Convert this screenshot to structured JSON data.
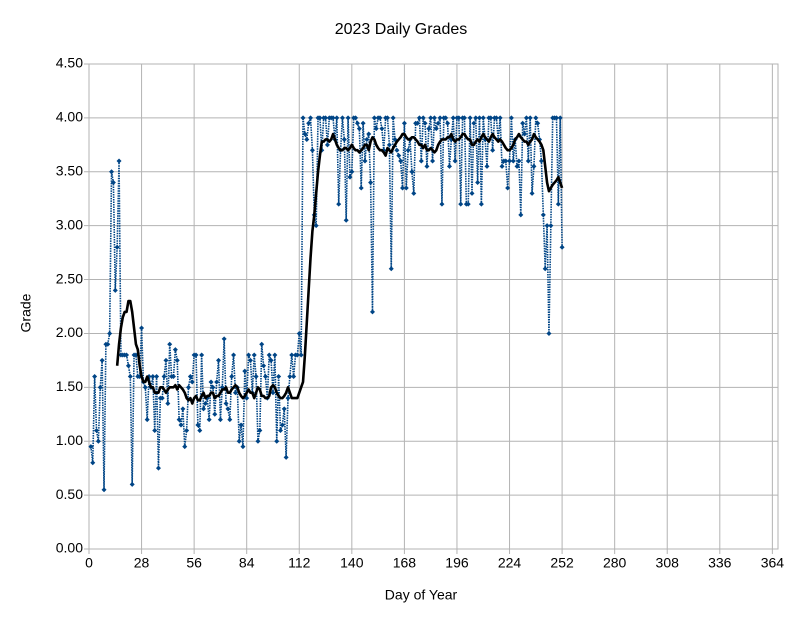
{
  "chart_data": {
    "type": "line",
    "title": "2023 Daily Grades",
    "xlabel": "Day of Year",
    "ylabel": "Grade",
    "x": [
      1,
      2,
      3,
      4,
      5,
      6,
      7,
      8,
      9,
      10,
      11,
      12,
      13,
      14,
      15,
      16,
      17,
      18,
      19,
      20,
      21,
      22,
      23,
      24,
      25,
      26,
      27,
      28,
      29,
      30,
      31,
      32,
      33,
      34,
      35,
      36,
      37,
      38,
      39,
      40,
      41,
      42,
      43,
      44,
      45,
      46,
      47,
      48,
      49,
      50,
      51,
      52,
      53,
      54,
      55,
      56,
      57,
      58,
      59,
      60,
      61,
      62,
      63,
      64,
      65,
      66,
      67,
      68,
      69,
      70,
      71,
      72,
      73,
      74,
      75,
      76,
      77,
      78,
      79,
      80,
      81,
      82,
      83,
      84,
      85,
      86,
      87,
      88,
      89,
      90,
      91,
      92,
      93,
      94,
      95,
      96,
      97,
      98,
      99,
      100,
      101,
      102,
      103,
      104,
      105,
      106,
      107,
      108,
      109,
      110,
      111,
      112,
      113,
      114,
      115,
      116,
      117,
      118,
      119,
      120,
      121,
      122,
      123,
      124,
      125,
      126,
      127,
      128,
      129,
      130,
      131,
      132,
      133,
      134,
      135,
      136,
      137,
      138,
      139,
      140,
      141,
      142,
      143,
      144,
      145,
      146,
      147,
      148,
      149,
      150,
      151,
      152,
      153,
      154,
      155,
      156,
      157,
      158,
      159,
      160,
      161,
      162,
      163,
      164,
      165,
      166,
      167,
      168,
      169,
      170,
      171,
      172,
      173,
      174,
      175,
      176,
      177,
      178,
      179,
      180,
      181,
      182,
      183,
      184,
      185,
      186,
      187,
      188,
      189,
      190,
      191,
      192,
      193,
      194,
      195,
      196,
      197,
      198,
      199,
      200,
      201,
      202,
      203,
      204,
      205,
      206,
      207,
      208,
      209,
      210,
      211,
      212,
      213,
      214,
      215,
      216,
      217,
      218,
      219,
      220,
      221,
      222,
      223,
      224,
      225,
      226,
      227,
      228,
      229,
      230,
      231,
      232,
      233,
      234,
      235,
      236,
      237,
      238,
      239,
      240,
      241,
      242,
      243,
      244,
      245,
      246,
      247,
      248,
      249,
      250,
      251,
      252
    ],
    "series": [
      {
        "color": "#004586",
        "style": "dotted",
        "markers": true,
        "values": [
          0.95,
          0.8,
          1.6,
          1.1,
          1.0,
          1.5,
          1.75,
          0.55,
          1.9,
          1.9,
          2.0,
          3.5,
          3.4,
          2.4,
          2.8,
          3.6,
          1.8,
          1.8,
          1.8,
          1.8,
          1.7,
          1.6,
          0.6,
          1.8,
          1.8,
          1.6,
          1.6,
          2.05,
          1.55,
          1.5,
          1.2,
          1.6,
          1.5,
          1.6,
          1.1,
          1.6,
          0.75,
          1.4,
          1.4,
          1.6,
          1.75,
          1.35,
          1.9,
          1.6,
          1.6,
          1.85,
          1.75,
          1.2,
          1.15,
          1.3,
          0.95,
          1.1,
          1.5,
          1.6,
          1.55,
          1.8,
          1.8,
          1.15,
          1.1,
          1.8,
          1.3,
          1.35,
          1.4,
          1.2,
          1.55,
          1.5,
          1.25,
          1.55,
          1.75,
          1.2,
          1.5,
          1.95,
          1.35,
          1.3,
          1.2,
          1.6,
          1.8,
          1.45,
          1.5,
          1.0,
          1.15,
          0.95,
          1.65,
          1.4,
          1.8,
          1.75,
          1.45,
          1.8,
          1.6,
          1.0,
          1.1,
          1.9,
          1.7,
          1.6,
          1.4,
          1.8,
          1.75,
          1.45,
          1.8,
          1.0,
          1.6,
          1.1,
          1.15,
          1.3,
          0.85,
          1.4,
          1.6,
          1.8,
          1.6,
          1.8,
          1.8,
          2.0,
          1.8,
          4.0,
          3.85,
          3.8,
          3.95,
          4.0,
          3.7,
          3.1,
          3.0,
          4.0,
          4.0,
          3.7,
          4.0,
          4.0,
          3.75,
          4.0,
          4.0,
          4.0,
          3.8,
          4.0,
          3.2,
          3.7,
          4.0,
          3.8,
          3.05,
          4.0,
          3.45,
          3.5,
          4.0,
          4.0,
          3.95,
          3.9,
          3.35,
          3.95,
          3.6,
          3.8,
          3.85,
          3.4,
          2.2,
          4.0,
          3.9,
          4.0,
          4.0,
          3.9,
          3.7,
          4.0,
          4.0,
          3.75,
          2.6,
          4.0,
          3.8,
          3.7,
          3.65,
          3.6,
          3.35,
          3.95,
          3.35,
          3.7,
          3.8,
          3.5,
          3.3,
          3.95,
          3.95,
          4.0,
          3.6,
          4.0,
          3.95,
          3.55,
          3.9,
          4.0,
          3.6,
          4.0,
          3.9,
          3.95,
          4.0,
          3.2,
          4.0,
          4.0,
          3.95,
          3.55,
          3.8,
          4.0,
          3.6,
          4.0,
          4.0,
          3.2,
          4.0,
          4.0,
          3.2,
          3.2,
          4.0,
          3.3,
          3.95,
          4.0,
          3.4,
          4.0,
          3.2,
          4.0,
          3.8,
          3.55,
          4.0,
          4.0,
          3.7,
          4.0,
          4.0,
          3.8,
          4.0,
          3.55,
          3.6,
          3.6,
          3.35,
          3.6,
          4.0,
          3.6,
          3.8,
          3.55,
          3.6,
          3.1,
          3.95,
          3.85,
          4.0,
          3.6,
          4.0,
          3.3,
          3.55,
          4.0,
          3.95,
          3.8,
          3.6,
          3.1,
          2.6,
          3.0,
          2.0,
          3.0,
          4.0,
          4.0,
          4.0,
          3.2,
          4.0,
          2.8
        ]
      },
      {
        "color": "#000000",
        "style": "solid",
        "markers": false,
        "values": [
          null,
          null,
          null,
          null,
          null,
          null,
          null,
          null,
          null,
          null,
          null,
          null,
          null,
          null,
          1.7,
          1.9,
          2.05,
          2.15,
          2.2,
          2.2,
          2.3,
          2.3,
          2.2,
          2.05,
          1.9,
          1.85,
          1.7,
          1.6,
          1.55,
          1.55,
          1.6,
          1.55,
          1.5,
          1.5,
          1.45,
          1.45,
          1.45,
          1.5,
          1.5,
          1.48,
          1.45,
          1.48,
          1.5,
          1.5,
          1.5,
          1.52,
          1.48,
          1.52,
          1.5,
          1.48,
          1.45,
          1.4,
          1.38,
          1.4,
          1.35,
          1.4,
          1.42,
          1.38,
          1.38,
          1.42,
          1.45,
          1.4,
          1.42,
          1.42,
          1.45,
          1.45,
          1.4,
          1.42,
          1.42,
          1.45,
          1.48,
          1.48,
          1.5,
          1.45,
          1.45,
          1.48,
          1.5,
          1.52,
          1.5,
          1.45,
          1.42,
          1.4,
          1.42,
          1.45,
          1.48,
          1.45,
          1.45,
          1.4,
          1.45,
          1.5,
          1.48,
          1.42,
          1.42,
          1.4,
          1.4,
          1.42,
          1.5,
          1.52,
          1.5,
          1.45,
          1.42,
          1.4,
          1.4,
          1.42,
          1.45,
          1.5,
          1.45,
          1.4,
          1.4,
          1.4,
          1.4,
          1.45,
          1.5,
          1.55,
          1.8,
          2.1,
          2.4,
          2.7,
          2.95,
          3.1,
          3.3,
          3.5,
          3.65,
          3.78,
          3.78,
          3.8,
          3.8,
          3.78,
          3.8,
          3.85,
          3.8,
          3.75,
          3.72,
          3.7,
          3.7,
          3.72,
          3.72,
          3.7,
          3.72,
          3.75,
          3.72,
          3.7,
          3.7,
          3.68,
          3.7,
          3.72,
          3.75,
          3.75,
          3.7,
          3.78,
          3.82,
          3.8,
          3.75,
          3.72,
          3.7,
          3.7,
          3.68,
          3.65,
          3.72,
          3.7,
          3.68,
          3.72,
          3.75,
          3.78,
          3.8,
          3.82,
          3.85,
          3.85,
          3.82,
          3.8,
          3.8,
          3.82,
          3.82,
          3.8,
          3.78,
          3.75,
          3.75,
          3.72,
          3.75,
          3.7,
          3.7,
          3.72,
          3.7,
          3.68,
          3.7,
          3.75,
          3.78,
          3.8,
          3.8,
          3.8,
          3.82,
          3.82,
          3.85,
          3.8,
          3.78,
          3.8,
          3.8,
          3.82,
          3.85,
          3.85,
          3.82,
          3.8,
          3.8,
          3.75,
          3.75,
          3.78,
          3.8,
          3.78,
          3.82,
          3.85,
          3.82,
          3.8,
          3.78,
          3.82,
          3.85,
          3.82,
          3.8,
          3.78,
          3.8,
          3.78,
          3.75,
          3.72,
          3.7,
          3.7,
          3.72,
          3.75,
          3.8,
          3.82,
          3.85,
          3.82,
          3.8,
          3.78,
          3.78,
          3.75,
          3.78,
          3.8,
          3.85,
          3.82,
          3.8,
          3.78,
          3.75,
          3.7,
          3.55,
          3.4,
          3.32,
          3.35,
          3.38,
          3.4,
          3.42,
          3.45,
          3.4,
          3.35
        ]
      }
    ],
    "xlim": [
      0,
      367
    ],
    "xticks": [
      0,
      28,
      56,
      84,
      112,
      140,
      168,
      196,
      224,
      252,
      280,
      308,
      336,
      364
    ],
    "ylim": [
      0,
      4.5
    ],
    "yticks": [
      {
        "value": 0,
        "label": "0.00"
      },
      {
        "value": 0.5,
        "label": "0.50"
      },
      {
        "value": 1,
        "label": "1.00"
      },
      {
        "value": 1.5,
        "label": "1.50"
      },
      {
        "value": 2,
        "label": "2.00"
      },
      {
        "value": 2.5,
        "label": "2.50"
      },
      {
        "value": 3,
        "label": "3.00"
      },
      {
        "value": 3.5,
        "label": "3.50"
      },
      {
        "value": 4,
        "label": "4.00"
      },
      {
        "value": 4.5,
        "label": "4.50"
      }
    ],
    "grid": true
  }
}
